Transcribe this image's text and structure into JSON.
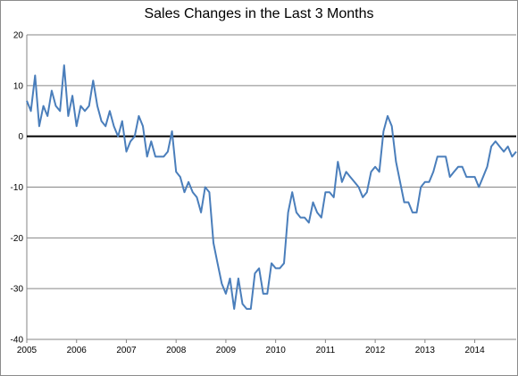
{
  "chart_data": {
    "type": "line",
    "title": "Sales Changes in the Last 3 Months",
    "xlabel": "",
    "ylabel": "",
    "ylim": [
      -40,
      20
    ],
    "xlim": [
      2005,
      2014.833
    ],
    "yticks": [
      "20",
      "10",
      "0",
      "-10",
      "-20",
      "-30",
      "-40"
    ],
    "xticks": [
      "2005",
      "2006",
      "2007",
      "2008",
      "2009",
      "2010",
      "2011",
      "2012",
      "2013",
      "2014"
    ],
    "grid": "horizontal",
    "legend": "none",
    "zero_line": true,
    "series": [
      {
        "color": "#4a7ebb",
        "x": [
          2005.0,
          2005.083,
          2005.167,
          2005.25,
          2005.333,
          2005.417,
          2005.5,
          2005.583,
          2005.667,
          2005.75,
          2005.833,
          2005.917,
          2006.0,
          2006.083,
          2006.167,
          2006.25,
          2006.333,
          2006.417,
          2006.5,
          2006.583,
          2006.667,
          2006.75,
          2006.833,
          2006.917,
          2007.0,
          2007.083,
          2007.167,
          2007.25,
          2007.333,
          2007.417,
          2007.5,
          2007.583,
          2007.667,
          2007.75,
          2007.833,
          2007.917,
          2008.0,
          2008.083,
          2008.167,
          2008.25,
          2008.333,
          2008.417,
          2008.5,
          2008.583,
          2008.667,
          2008.75,
          2008.833,
          2008.917,
          2009.0,
          2009.083,
          2009.167,
          2009.25,
          2009.333,
          2009.417,
          2009.5,
          2009.583,
          2009.667,
          2009.75,
          2009.833,
          2009.917,
          2010.0,
          2010.083,
          2010.167,
          2010.25,
          2010.333,
          2010.417,
          2010.5,
          2010.583,
          2010.667,
          2010.75,
          2010.833,
          2010.917,
          2011.0,
          2011.083,
          2011.167,
          2011.25,
          2011.333,
          2011.417,
          2011.5,
          2011.583,
          2011.667,
          2011.75,
          2011.833,
          2011.917,
          2012.0,
          2012.083,
          2012.167,
          2012.25,
          2012.333,
          2012.417,
          2012.5,
          2012.583,
          2012.667,
          2012.75,
          2012.833,
          2012.917,
          2013.0,
          2013.083,
          2013.167,
          2013.25,
          2013.333,
          2013.417,
          2013.5,
          2013.583,
          2013.667,
          2013.75,
          2013.833,
          2013.917,
          2014.0,
          2014.083,
          2014.167,
          2014.25,
          2014.333,
          2014.417,
          2014.5,
          2014.583,
          2014.667,
          2014.75,
          2014.833
        ],
        "y": [
          7,
          5,
          12,
          2,
          6,
          4,
          9,
          6,
          5,
          14,
          4,
          8,
          2,
          6,
          5,
          6,
          11,
          6,
          3,
          2,
          5,
          2,
          0,
          3,
          -3,
          -1,
          0,
          4,
          2,
          -4,
          -1,
          -4,
          -4,
          -4,
          -3,
          1,
          -7,
          -8,
          -11,
          -9,
          -11,
          -12,
          -15,
          -10,
          -11,
          -21,
          -25,
          -29,
          -31,
          -28,
          -34,
          -28,
          -33,
          -34,
          -34,
          -27,
          -26,
          -31,
          -31,
          -25,
          -26,
          -26,
          -25,
          -15,
          -11,
          -15,
          -16,
          -16,
          -17,
          -13,
          -15,
          -16,
          -11,
          -11,
          -12,
          -5,
          -9,
          -7,
          -8,
          -9,
          -10,
          -12,
          -11,
          -7,
          -6,
          -7,
          1,
          4,
          2,
          -5,
          -9,
          -13,
          -13,
          -15,
          -15,
          -10,
          -9,
          -9,
          -7,
          -4,
          -4,
          -4,
          -8,
          -7,
          -6,
          -6,
          -8,
          -8,
          -8,
          -10,
          -8,
          -6,
          -2,
          -1,
          -2,
          -3,
          -2,
          -4,
          -3
        ]
      }
    ]
  }
}
